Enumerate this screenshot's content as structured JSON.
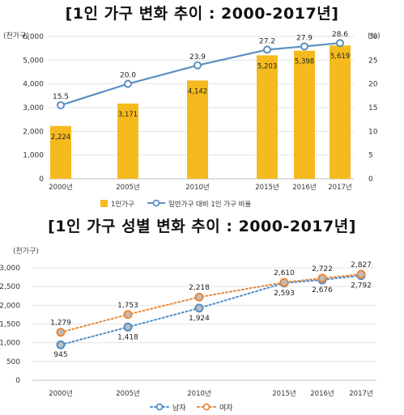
{
  "chart_data": [
    {
      "type": "bar",
      "title": "[1인 가구 변화 추이 : 2000-2017년]",
      "left_unit": "(천가구)",
      "right_unit": "(%)",
      "categories": [
        "2000년",
        "2005년",
        "2010년",
        "2015년",
        "2016년",
        "2017년"
      ],
      "ylim": [
        0,
        6000
      ],
      "y2lim": [
        0,
        30
      ],
      "y_ticks": [
        "0",
        "1,000",
        "2,000",
        "3,000",
        "4,000",
        "5,000",
        "6,000"
      ],
      "y2_ticks": [
        "0",
        "5",
        "10",
        "15",
        "20",
        "25",
        "30"
      ],
      "series": [
        {
          "name": "1인가구",
          "kind": "bar",
          "values": [
            2224,
            3171,
            4142,
            5203,
            5398,
            5619
          ],
          "labels": [
            "2,224",
            "3,171",
            "4,142",
            "5,203",
            "5,398",
            "5,619"
          ],
          "color": "#F5BA1E"
        },
        {
          "name": "일반가구 대비 1인 가구 비율",
          "kind": "line",
          "axis": "right",
          "values": [
            15.5,
            20.0,
            23.9,
            27.2,
            27.9,
            28.6
          ],
          "labels": [
            "15.5",
            "20.0",
            "23.9",
            "27.2",
            "27.9",
            "28.6"
          ],
          "color": "#5B8FC2"
        }
      ],
      "legend": "bottom"
    },
    {
      "type": "line",
      "title": "[1인 가구 성별 변화 추이 : 2000-2017년]",
      "left_unit": "(천가구)",
      "categories": [
        "2000년",
        "2005년",
        "2010년",
        "2015년",
        "2016년",
        "2017년"
      ],
      "ylim": [
        0,
        3000
      ],
      "y_ticks": [
        "0",
        "500",
        "1,000",
        "1,500",
        "2,000",
        "2,500",
        "3,000"
      ],
      "series": [
        {
          "name": "남자",
          "values": [
            945,
            1418,
            1924,
            2593,
            2676,
            2792
          ],
          "labels": [
            "945",
            "1,418",
            "1,924",
            "2,593",
            "2,676",
            "2,792"
          ],
          "color": "#4F8DC8"
        },
        {
          "name": "여자",
          "values": [
            1279,
            1753,
            2218,
            2610,
            2722,
            2827
          ],
          "labels": [
            "1,279",
            "1,753",
            "2,218",
            "2,610",
            "2,722",
            "2,827"
          ],
          "color": "#E8893A"
        }
      ],
      "legend": "bottom"
    }
  ]
}
